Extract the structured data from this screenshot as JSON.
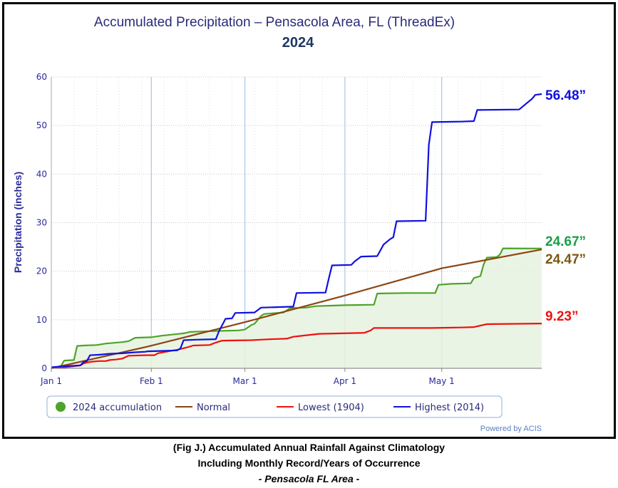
{
  "chart_data": {
    "type": "line",
    "title": "Accumulated Precipitation – Pensacola Area, FL (ThreadEx)",
    "subtitle": "2024",
    "ylabel": "Precipitation (inches)",
    "xlabel": "",
    "ylim": [
      0,
      60
    ],
    "yticks": [
      "0",
      "10",
      "20",
      "30",
      "40",
      "50",
      "60"
    ],
    "xticks": [
      {
        "label": "Jan 1",
        "day": 0
      },
      {
        "label": "Feb 1",
        "day": 31
      },
      {
        "label": "Mar 1",
        "day": 60
      },
      {
        "label": "Apr 1",
        "day": 91
      },
      {
        "label": "May 1",
        "day": 121
      }
    ],
    "xlim_days": [
      0,
      152
    ],
    "grid": true,
    "legend_position": "bottom",
    "credit": "Powered by ACIS",
    "series": [
      {
        "name": "2024 accumulation",
        "color": "#4ea32a",
        "area": true,
        "end_label": "24.67”",
        "points": [
          [
            0,
            0.2
          ],
          [
            2,
            0.3
          ],
          [
            3,
            0.5
          ],
          [
            4,
            1.6
          ],
          [
            7,
            1.7
          ],
          [
            8,
            4.6
          ],
          [
            10,
            4.7
          ],
          [
            14,
            4.8
          ],
          [
            17,
            5.1
          ],
          [
            22,
            5.4
          ],
          [
            24,
            5.6
          ],
          [
            26,
            6.3
          ],
          [
            31,
            6.4
          ],
          [
            34,
            6.7
          ],
          [
            41,
            7.2
          ],
          [
            43,
            7.5
          ],
          [
            47,
            7.6
          ],
          [
            52,
            7.7
          ],
          [
            58,
            7.8
          ],
          [
            60,
            8.0
          ],
          [
            62,
            8.9
          ],
          [
            63,
            9.2
          ],
          [
            65,
            10.8
          ],
          [
            66,
            11.2
          ],
          [
            72,
            11.5
          ],
          [
            74,
            12.4
          ],
          [
            79,
            12.5
          ],
          [
            82,
            12.8
          ],
          [
            86,
            12.9
          ],
          [
            91,
            13.0
          ],
          [
            100,
            13.1
          ],
          [
            101,
            15.4
          ],
          [
            110,
            15.5
          ],
          [
            119,
            15.5
          ],
          [
            120,
            17.2
          ],
          [
            124,
            17.4
          ],
          [
            130,
            17.5
          ],
          [
            131,
            18.6
          ],
          [
            133,
            19.0
          ],
          [
            134,
            21.4
          ],
          [
            135,
            22.8
          ],
          [
            138,
            22.9
          ],
          [
            139,
            23.4
          ],
          [
            140,
            24.7
          ],
          [
            152,
            24.67
          ]
        ]
      },
      {
        "name": "Normal",
        "color": "#8b4513",
        "area": false,
        "end_label": "24.47”",
        "points": [
          [
            0,
            0
          ],
          [
            30,
            4.5
          ],
          [
            60,
            9.5
          ],
          [
            91,
            15.0
          ],
          [
            121,
            20.6
          ],
          [
            152,
            24.47
          ]
        ]
      },
      {
        "name": "Lowest (1904)",
        "color": "#ee1111",
        "area": false,
        "end_label": "9.23”",
        "points": [
          [
            0,
            0.1
          ],
          [
            4,
            0.2
          ],
          [
            9,
            0.6
          ],
          [
            10,
            1.0
          ],
          [
            11,
            1.2
          ],
          [
            13,
            1.4
          ],
          [
            15,
            1.5
          ],
          [
            17,
            1.5
          ],
          [
            18,
            1.7
          ],
          [
            20,
            1.8
          ],
          [
            22,
            2.0
          ],
          [
            24,
            2.6
          ],
          [
            29,
            2.7
          ],
          [
            32,
            2.7
          ],
          [
            33,
            3.1
          ],
          [
            37,
            3.6
          ],
          [
            39,
            3.8
          ],
          [
            42,
            4.3
          ],
          [
            44,
            4.7
          ],
          [
            49,
            4.8
          ],
          [
            51,
            5.3
          ],
          [
            53,
            5.7
          ],
          [
            62,
            5.8
          ],
          [
            65,
            5.9
          ],
          [
            68,
            6.0
          ],
          [
            73,
            6.1
          ],
          [
            75,
            6.5
          ],
          [
            79,
            6.8
          ],
          [
            83,
            7.1
          ],
          [
            97,
            7.3
          ],
          [
            99,
            7.8
          ],
          [
            100,
            8.3
          ],
          [
            118,
            8.3
          ],
          [
            127,
            8.4
          ],
          [
            131,
            8.5
          ],
          [
            135,
            9.1
          ],
          [
            152,
            9.23
          ]
        ]
      },
      {
        "name": "Highest (2014)",
        "color": "#1010e0",
        "area": false,
        "end_label": "56.48”",
        "points": [
          [
            0,
            0.2
          ],
          [
            3,
            0.4
          ],
          [
            6,
            0.5
          ],
          [
            9,
            0.6
          ],
          [
            10,
            1.3
          ],
          [
            11,
            1.5
          ],
          [
            12,
            2.7
          ],
          [
            15,
            2.8
          ],
          [
            18,
            3.0
          ],
          [
            22,
            3.1
          ],
          [
            26,
            3.3
          ],
          [
            29,
            3.4
          ],
          [
            30,
            3.5
          ],
          [
            35,
            3.6
          ],
          [
            39,
            3.7
          ],
          [
            40,
            4.1
          ],
          [
            41,
            5.8
          ],
          [
            45,
            5.9
          ],
          [
            51,
            6.0
          ],
          [
            52,
            7.7
          ],
          [
            54,
            10.2
          ],
          [
            56,
            10.3
          ],
          [
            57,
            11.4
          ],
          [
            63,
            11.5
          ],
          [
            65,
            12.5
          ],
          [
            70,
            12.6
          ],
          [
            75,
            12.7
          ],
          [
            76,
            15.5
          ],
          [
            85,
            15.6
          ],
          [
            86,
            18.5
          ],
          [
            87,
            21.2
          ],
          [
            93,
            21.3
          ],
          [
            94,
            22.0
          ],
          [
            96,
            23.0
          ],
          [
            101,
            23.1
          ],
          [
            103,
            25.5
          ],
          [
            105,
            26.6
          ],
          [
            106,
            27.0
          ],
          [
            107,
            30.3
          ],
          [
            116,
            30.4
          ],
          [
            117,
            46.0
          ],
          [
            118,
            50.7
          ],
          [
            127,
            50.8
          ],
          [
            131,
            50.9
          ],
          [
            132,
            53.2
          ],
          [
            145,
            53.3
          ],
          [
            149,
            55.5
          ],
          [
            150,
            56.3
          ],
          [
            152,
            56.48
          ]
        ]
      }
    ]
  },
  "caption": {
    "line1": "(Fig J.) Accumulated Annual Rainfall Against  Climatology",
    "line2": "Including Monthly Record/Years of Occurrence",
    "line3": "- Pensacola FL Area -"
  }
}
